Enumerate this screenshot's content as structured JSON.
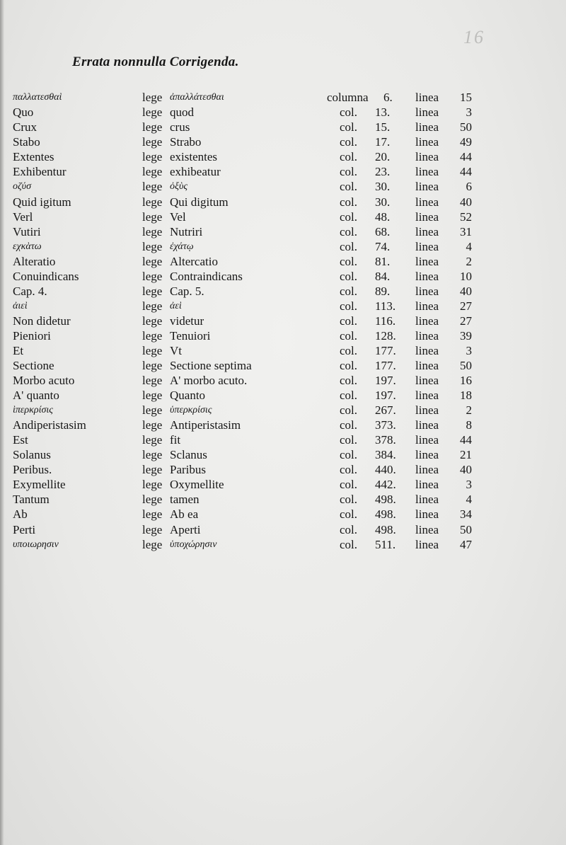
{
  "page_number": "16",
  "title": "Errata nonnulla Corrigenda.",
  "rows": [
    {
      "wrong": "παλλατεσθαὶ",
      "lege": "lege",
      "right": "ἀπαλλάτεσθαι",
      "col": "columna",
      "colnum": "6.",
      "linea": "linea",
      "line": "15",
      "greek": true
    },
    {
      "wrong": "Quo",
      "lege": "lege",
      "right": "quod",
      "col": "col.",
      "colnum": "13.",
      "linea": "linea",
      "line": "3"
    },
    {
      "wrong": "Crux",
      "lege": "lege",
      "right": "crus",
      "col": "col.",
      "colnum": "15.",
      "linea": "linea",
      "line": "50"
    },
    {
      "wrong": "Stabo",
      "lege": "lege",
      "right": "Strabo",
      "col": "col.",
      "colnum": "17.",
      "linea": "linea",
      "line": "49"
    },
    {
      "wrong": "Extentes",
      "lege": "lege",
      "right": "existentes",
      "col": "col.",
      "colnum": "20.",
      "linea": "linea",
      "line": "44"
    },
    {
      "wrong": "Exhibentur",
      "lege": "lege",
      "right": "exhibeatur",
      "col": "col.",
      "colnum": "23.",
      "linea": "linea",
      "line": "44"
    },
    {
      "wrong": "οζύσ",
      "lege": "lege",
      "right": "ὀξὺς",
      "col": "col.",
      "colnum": "30.",
      "linea": "linea",
      "line": "6",
      "greek": true
    },
    {
      "wrong": "Quid igitum",
      "lege": "lege",
      "right": "Qui digitum",
      "col": "col.",
      "colnum": "30.",
      "linea": "linea",
      "line": "40"
    },
    {
      "wrong": "Verl",
      "lege": "lege",
      "right": "Vel",
      "col": "col.",
      "colnum": "48.",
      "linea": "linea",
      "line": "52"
    },
    {
      "wrong": "Vutiri",
      "lege": "lege",
      "right": "Nutriri",
      "col": "col.",
      "colnum": "68.",
      "linea": "linea",
      "line": "31"
    },
    {
      "wrong": "εχκὰτω",
      "lege": "lege",
      "right": "ἐχάτῳ",
      "col": "col.",
      "colnum": "74.",
      "linea": "linea",
      "line": "4",
      "greek": true
    },
    {
      "wrong": "Alteratio",
      "lege": "lege",
      "right": "Altercatio",
      "col": "col.",
      "colnum": "81.",
      "linea": "linea",
      "line": "2"
    },
    {
      "wrong": "Conuindicans",
      "lege": "lege",
      "right": "Contraindicans",
      "col": "col.",
      "colnum": "84.",
      "linea": "linea",
      "line": "10"
    },
    {
      "wrong": "Cap. 4.",
      "lege": "lege",
      "right": "Cap. 5.",
      "col": "col.",
      "colnum": "89.",
      "linea": "linea",
      "line": "40"
    },
    {
      "wrong": "ἀιεὶ",
      "lege": "lege",
      "right": "ἀεὶ",
      "col": "col.",
      "colnum": "113.",
      "linea": "linea",
      "line": "27",
      "greek": true
    },
    {
      "wrong": "Non didetur",
      "lege": "lege",
      "right": "videtur",
      "col": "col.",
      "colnum": "116.",
      "linea": "linea",
      "line": "27"
    },
    {
      "wrong": "Pieniori",
      "lege": "lege",
      "right": "Tenuiori",
      "col": "col.",
      "colnum": "128.",
      "linea": "linea",
      "line": "39"
    },
    {
      "wrong": "Et",
      "lege": "lege",
      "right": "Vt",
      "col": "col.",
      "colnum": "177.",
      "linea": "linea",
      "line": "3"
    },
    {
      "wrong": "Sectione",
      "lege": "lege",
      "right": "Sectione septima",
      "col": "col.",
      "colnum": "177.",
      "linea": "linea",
      "line": "50"
    },
    {
      "wrong": "Morbo acuto",
      "lege": "lege",
      "right": "A' morbo acuto.",
      "col": "col.",
      "colnum": "197.",
      "linea": "linea",
      "line": "16"
    },
    {
      "wrong": "A' quanto",
      "lege": "lege",
      "right": "Quanto",
      "col": "col.",
      "colnum": "197.",
      "linea": "linea",
      "line": "18"
    },
    {
      "wrong": "ὶπερκρίσις",
      "lege": "lege",
      "right": "ὑπερκρίσις",
      "col": "col.",
      "colnum": "267.",
      "linea": "linea",
      "line": "2",
      "greek": true
    },
    {
      "wrong": "Andiperistasim",
      "lege": "lege",
      "right": "Antiperistasim",
      "col": "col.",
      "colnum": "373.",
      "linea": "linea",
      "line": "8"
    },
    {
      "wrong": "Est",
      "lege": "lege",
      "right": "fit",
      "col": "col.",
      "colnum": "378.",
      "linea": "linea",
      "line": "44"
    },
    {
      "wrong": "Solanus",
      "lege": "lege",
      "right": "Sclanus",
      "col": "col.",
      "colnum": "384.",
      "linea": "linea",
      "line": "21"
    },
    {
      "wrong": "Peribus.",
      "lege": "lege",
      "right": "Paribus",
      "col": "col.",
      "colnum": "440.",
      "linea": "linea",
      "line": "40"
    },
    {
      "wrong": "Exymellite",
      "lege": "lege",
      "right": "Oxymellite",
      "col": "col.",
      "colnum": "442.",
      "linea": "linea",
      "line": "3"
    },
    {
      "wrong": "Tantum",
      "lege": "lege",
      "right": "tamen",
      "col": "col.",
      "colnum": "498.",
      "linea": "linea",
      "line": "4"
    },
    {
      "wrong": "Ab",
      "lege": "lege",
      "right": "Ab ea",
      "col": "col.",
      "colnum": "498.",
      "linea": "linea",
      "line": "34"
    },
    {
      "wrong": "Perti",
      "lege": "lege",
      "right": "Aperti",
      "col": "col.",
      "colnum": "498.",
      "linea": "linea",
      "line": "50"
    },
    {
      "wrong": "υποιωρησιν",
      "lege": "lege",
      "right": "ὑποχώρησιν",
      "col": "col.",
      "colnum": "511.",
      "linea": "linea",
      "line": "47",
      "greek": true
    }
  ]
}
